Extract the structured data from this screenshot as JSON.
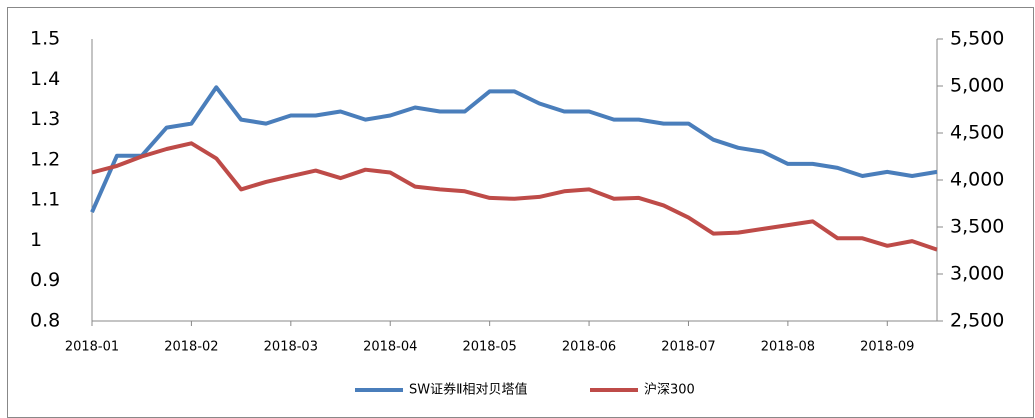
{
  "chart_data": {
    "type": "line",
    "categories": [
      "2018-01",
      null,
      null,
      null,
      "2018-02",
      null,
      null,
      null,
      "2018-03",
      null,
      null,
      null,
      "2018-04",
      null,
      null,
      null,
      "2018-05",
      null,
      null,
      null,
      "2018-06",
      null,
      null,
      null,
      "2018-07",
      null,
      null,
      null,
      "2018-08",
      null,
      null,
      null,
      "2018-09",
      null,
      null
    ],
    "series": [
      {
        "name": "SW证券Ⅱ相对贝塔值",
        "color": "#4a7ebb",
        "values": [
          1.07,
          1.21,
          1.21,
          1.28,
          1.29,
          1.38,
          1.3,
          1.29,
          1.31,
          1.31,
          1.32,
          1.3,
          1.31,
          1.33,
          1.32,
          1.32,
          1.37,
          1.37,
          1.34,
          1.32,
          1.32,
          1.3,
          1.3,
          1.29,
          1.29,
          1.25,
          1.23,
          1.22,
          1.19,
          1.19,
          1.18,
          1.16,
          1.17,
          1.16,
          1.17
        ]
      },
      {
        "name": "沪深300",
        "color": "#be4b48",
        "axis": "y2",
        "values": [
          4080,
          4150,
          4250,
          4330,
          4390,
          4230,
          3900,
          3980,
          4040,
          4100,
          4020,
          4110,
          4080,
          3930,
          3900,
          3880,
          3810,
          3800,
          3820,
          3880,
          3900,
          3800,
          3810,
          3730,
          3600,
          3430,
          3440,
          3480,
          3520,
          3560,
          3380,
          3380,
          3300,
          3350,
          3260
        ]
      }
    ],
    "ylim": [
      0.8,
      1.5
    ],
    "yticks": [
      0.8,
      0.9,
      1,
      1.1,
      1.2,
      1.3,
      1.4,
      1.5
    ],
    "y2lim": [
      2500,
      5500
    ],
    "y2ticks": [
      {
        "value": 2500,
        "label": "2,500"
      },
      {
        "value": 3000,
        "label": "3,000"
      },
      {
        "value": 3500,
        "label": "3,500"
      },
      {
        "value": 4000,
        "label": "4,000"
      },
      {
        "value": 4500,
        "label": "4,500"
      },
      {
        "value": 5000,
        "label": "5,000"
      },
      {
        "value": 5500,
        "label": "5,500"
      }
    ],
    "legend": "bottom"
  }
}
